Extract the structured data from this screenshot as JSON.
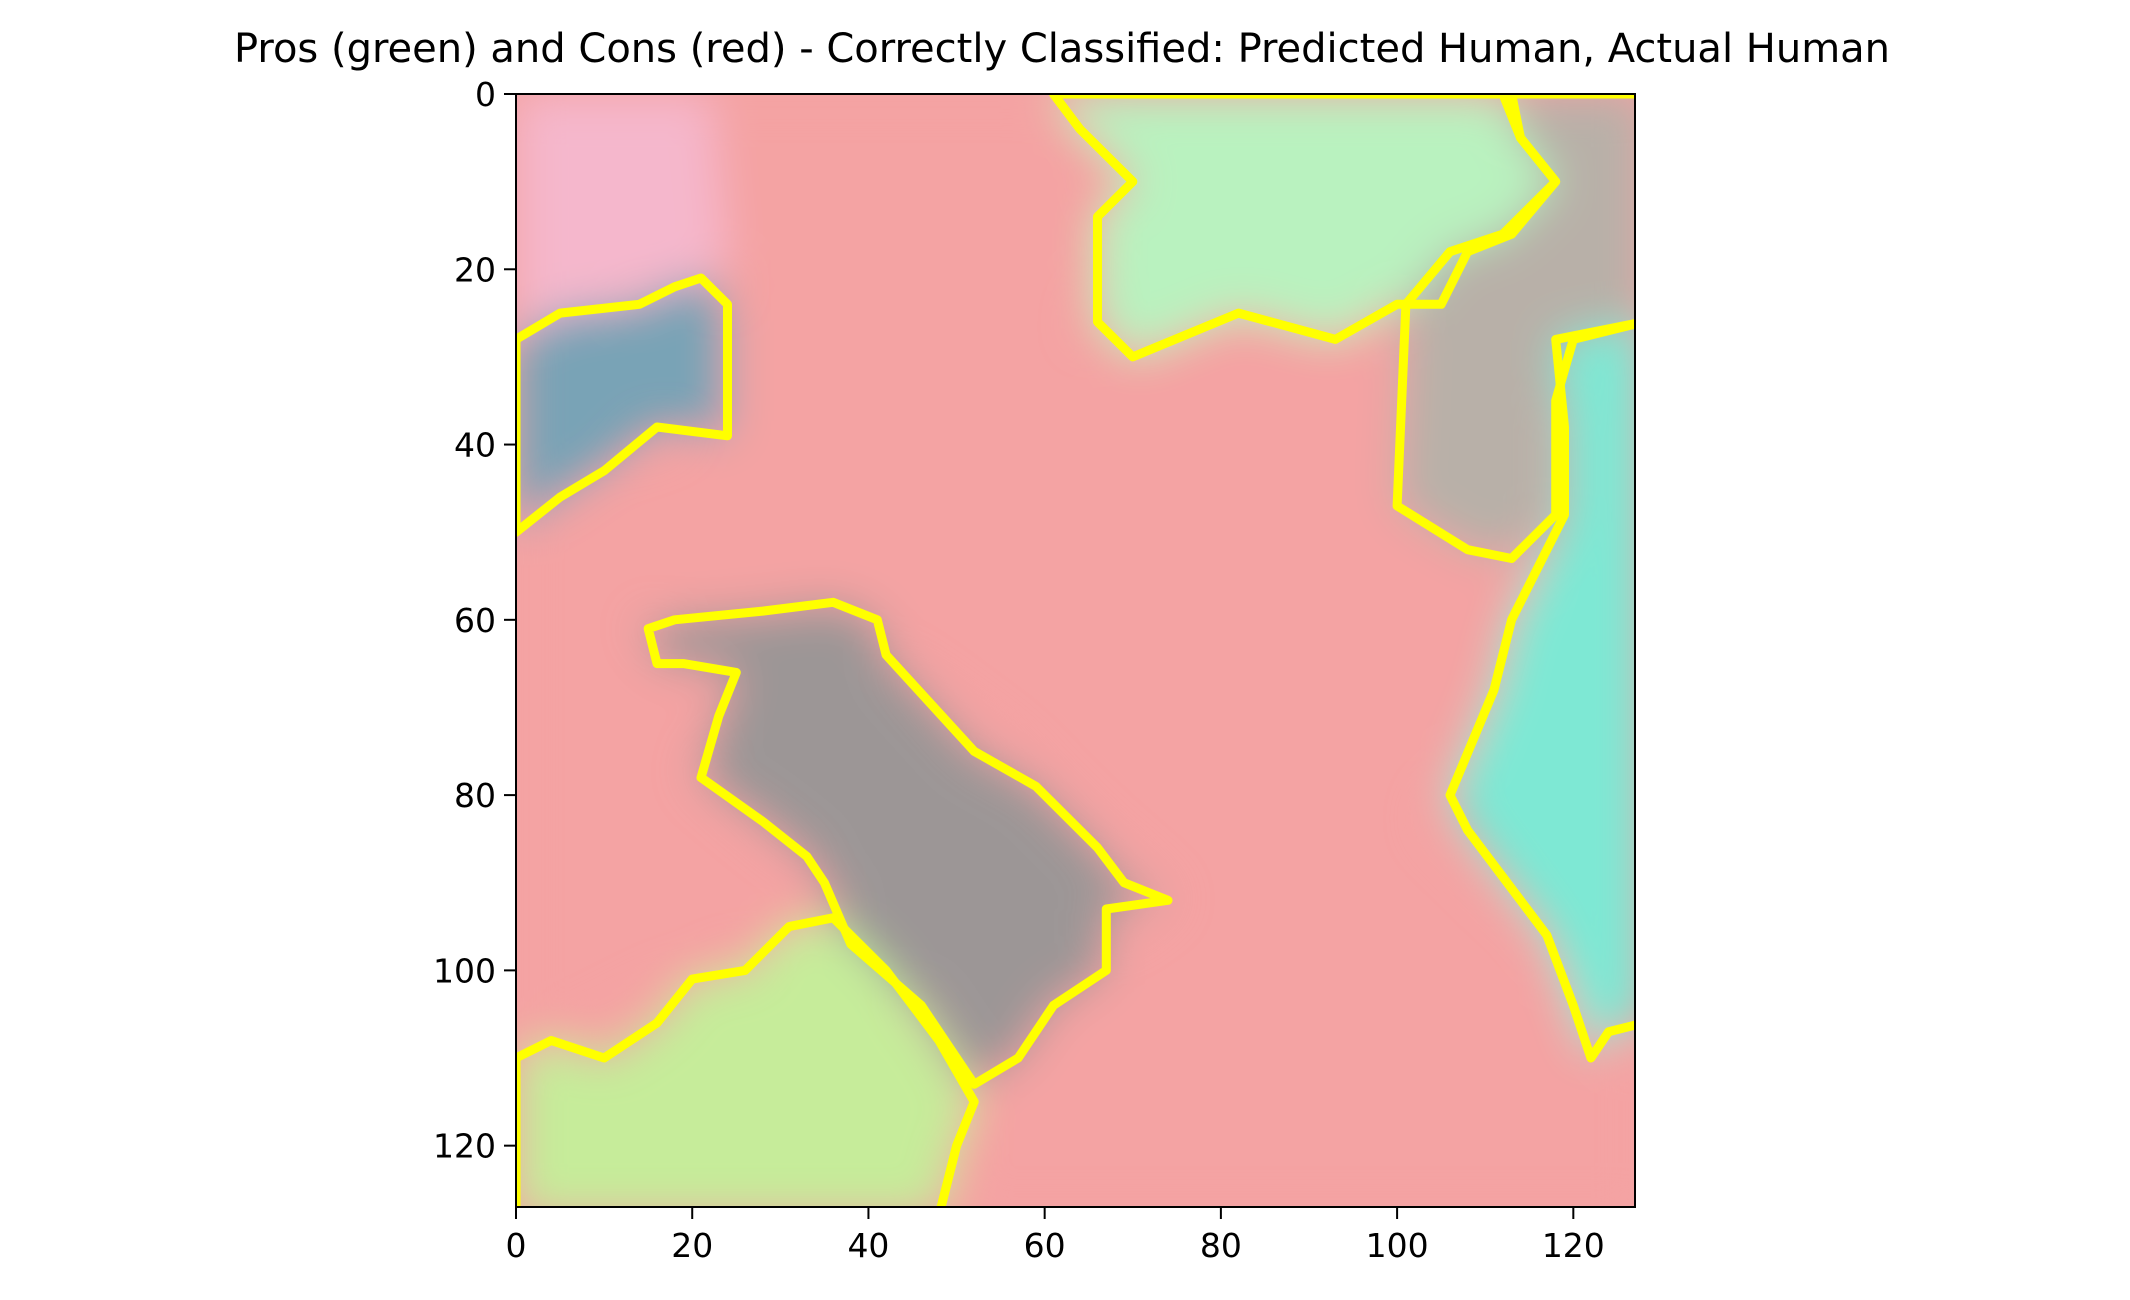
{
  "chart_data": {
    "type": "heatmap",
    "title": "Pros (green) and Cons (red) - Correctly Classified: Predicted Human, Actual Human",
    "xlabel": "",
    "ylabel": "",
    "xlim": [
      0,
      127
    ],
    "ylim": [
      127,
      0
    ],
    "xticks": [
      0,
      20,
      40,
      60,
      80,
      100,
      120
    ],
    "yticks": [
      0,
      20,
      40,
      60,
      80,
      100,
      120
    ],
    "grid": false,
    "legend": "none",
    "boundary_color": "#ffff00",
    "color_key": {
      "pros": "#7cf08a",
      "cons": "#f08080"
    },
    "regions": [
      {
        "name": "top-left pink",
        "color": "#f5b7cc",
        "outline": false,
        "points": [
          [
            0,
            0
          ],
          [
            22,
            0
          ],
          [
            24,
            20
          ],
          [
            18,
            22
          ],
          [
            0,
            28
          ]
        ]
      },
      {
        "name": "face and shoulder",
        "color": "#f4a3a3",
        "outline": false,
        "points": [
          [
            22,
            0
          ],
          [
            60,
            0
          ],
          [
            66,
            6
          ],
          [
            68,
            12
          ],
          [
            64,
            28
          ],
          [
            82,
            25
          ],
          [
            100,
            24
          ],
          [
            105,
            46
          ],
          [
            117,
            49
          ],
          [
            110,
            72
          ],
          [
            103,
            83
          ],
          [
            115,
            95
          ],
          [
            122,
            106
          ],
          [
            128,
            110
          ],
          [
            128,
            128
          ],
          [
            50,
            128
          ],
          [
            52,
            112
          ],
          [
            66,
            98
          ],
          [
            75,
            92
          ],
          [
            66,
            84
          ],
          [
            56,
            74
          ],
          [
            40,
            62
          ],
          [
            28,
            60
          ],
          [
            14,
            60
          ],
          [
            16,
            65
          ],
          [
            25,
            66
          ],
          [
            20,
            78
          ],
          [
            35,
            90
          ],
          [
            35,
            95
          ],
          [
            18,
            101
          ],
          [
            0,
            110
          ],
          [
            0,
            50
          ],
          [
            12,
            42
          ],
          [
            24,
            37
          ],
          [
            24,
            20
          ]
        ]
      },
      {
        "name": "top green",
        "color": "#b9f2bf",
        "outline": true,
        "points": [
          [
            61,
            0
          ],
          [
            112,
            0
          ],
          [
            114,
            5
          ],
          [
            118,
            10
          ],
          [
            113,
            16
          ],
          [
            108,
            18
          ],
          [
            105,
            24
          ],
          [
            100,
            24
          ],
          [
            93,
            28
          ],
          [
            82,
            25
          ],
          [
            70,
            30
          ],
          [
            66,
            26
          ],
          [
            66,
            14
          ],
          [
            70,
            10
          ],
          [
            64,
            4
          ]
        ]
      },
      {
        "name": "eye grey",
        "color": "#b8b0a8",
        "outline": true,
        "points": [
          [
            113,
            0
          ],
          [
            128,
            0
          ],
          [
            128,
            26
          ],
          [
            120,
            28
          ],
          [
            118,
            35
          ],
          [
            118,
            48
          ],
          [
            113,
            53
          ],
          [
            108,
            52
          ],
          [
            100,
            47
          ],
          [
            101,
            24
          ],
          [
            106,
            18
          ],
          [
            112,
            16
          ],
          [
            118,
            10
          ],
          [
            114,
            5
          ]
        ]
      },
      {
        "name": "right cyan",
        "color": "#7ee8d4",
        "outline": true,
        "points": [
          [
            128,
            26
          ],
          [
            128,
            106
          ],
          [
            124,
            107
          ],
          [
            122,
            110
          ],
          [
            120,
            104
          ],
          [
            117,
            96
          ],
          [
            108,
            84
          ],
          [
            106,
            80
          ],
          [
            111,
            68
          ],
          [
            113,
            60
          ],
          [
            119,
            48
          ],
          [
            119,
            38
          ],
          [
            118,
            28
          ]
        ]
      },
      {
        "name": "left blue",
        "color": "#79a3b6",
        "outline": true,
        "points": [
          [
            0,
            28
          ],
          [
            5,
            25
          ],
          [
            14,
            24
          ],
          [
            18,
            22
          ],
          [
            21,
            21
          ],
          [
            24,
            24
          ],
          [
            24,
            39
          ],
          [
            16,
            38
          ],
          [
            10,
            43
          ],
          [
            5,
            46
          ],
          [
            0,
            50
          ]
        ]
      },
      {
        "name": "grey neck",
        "color": "#9c9696",
        "outline": true,
        "points": [
          [
            15,
            61
          ],
          [
            18,
            60
          ],
          [
            28,
            59
          ],
          [
            36,
            58
          ],
          [
            41,
            60
          ],
          [
            42,
            64
          ],
          [
            52,
            75
          ],
          [
            59,
            79
          ],
          [
            66,
            86
          ],
          [
            69,
            90
          ],
          [
            74,
            92
          ],
          [
            67,
            93
          ],
          [
            67,
            100
          ],
          [
            61,
            104
          ],
          [
            57,
            110
          ],
          [
            52,
            113
          ],
          [
            46,
            104
          ],
          [
            38,
            97
          ],
          [
            35,
            90
          ],
          [
            33,
            87
          ],
          [
            28,
            83
          ],
          [
            21,
            78
          ],
          [
            23,
            71
          ],
          [
            25,
            66
          ],
          [
            19,
            65
          ],
          [
            16,
            65
          ]
        ]
      },
      {
        "name": "bottom green",
        "color": "#c6ec9a",
        "outline": true,
        "points": [
          [
            0,
            110
          ],
          [
            4,
            108
          ],
          [
            10,
            110
          ],
          [
            16,
            106
          ],
          [
            20,
            101
          ],
          [
            26,
            100
          ],
          [
            31,
            95
          ],
          [
            36,
            94
          ],
          [
            42,
            100
          ],
          [
            48,
            108
          ],
          [
            52,
            115
          ],
          [
            50,
            120
          ],
          [
            48,
            128
          ],
          [
            0,
            128
          ]
        ]
      }
    ]
  }
}
